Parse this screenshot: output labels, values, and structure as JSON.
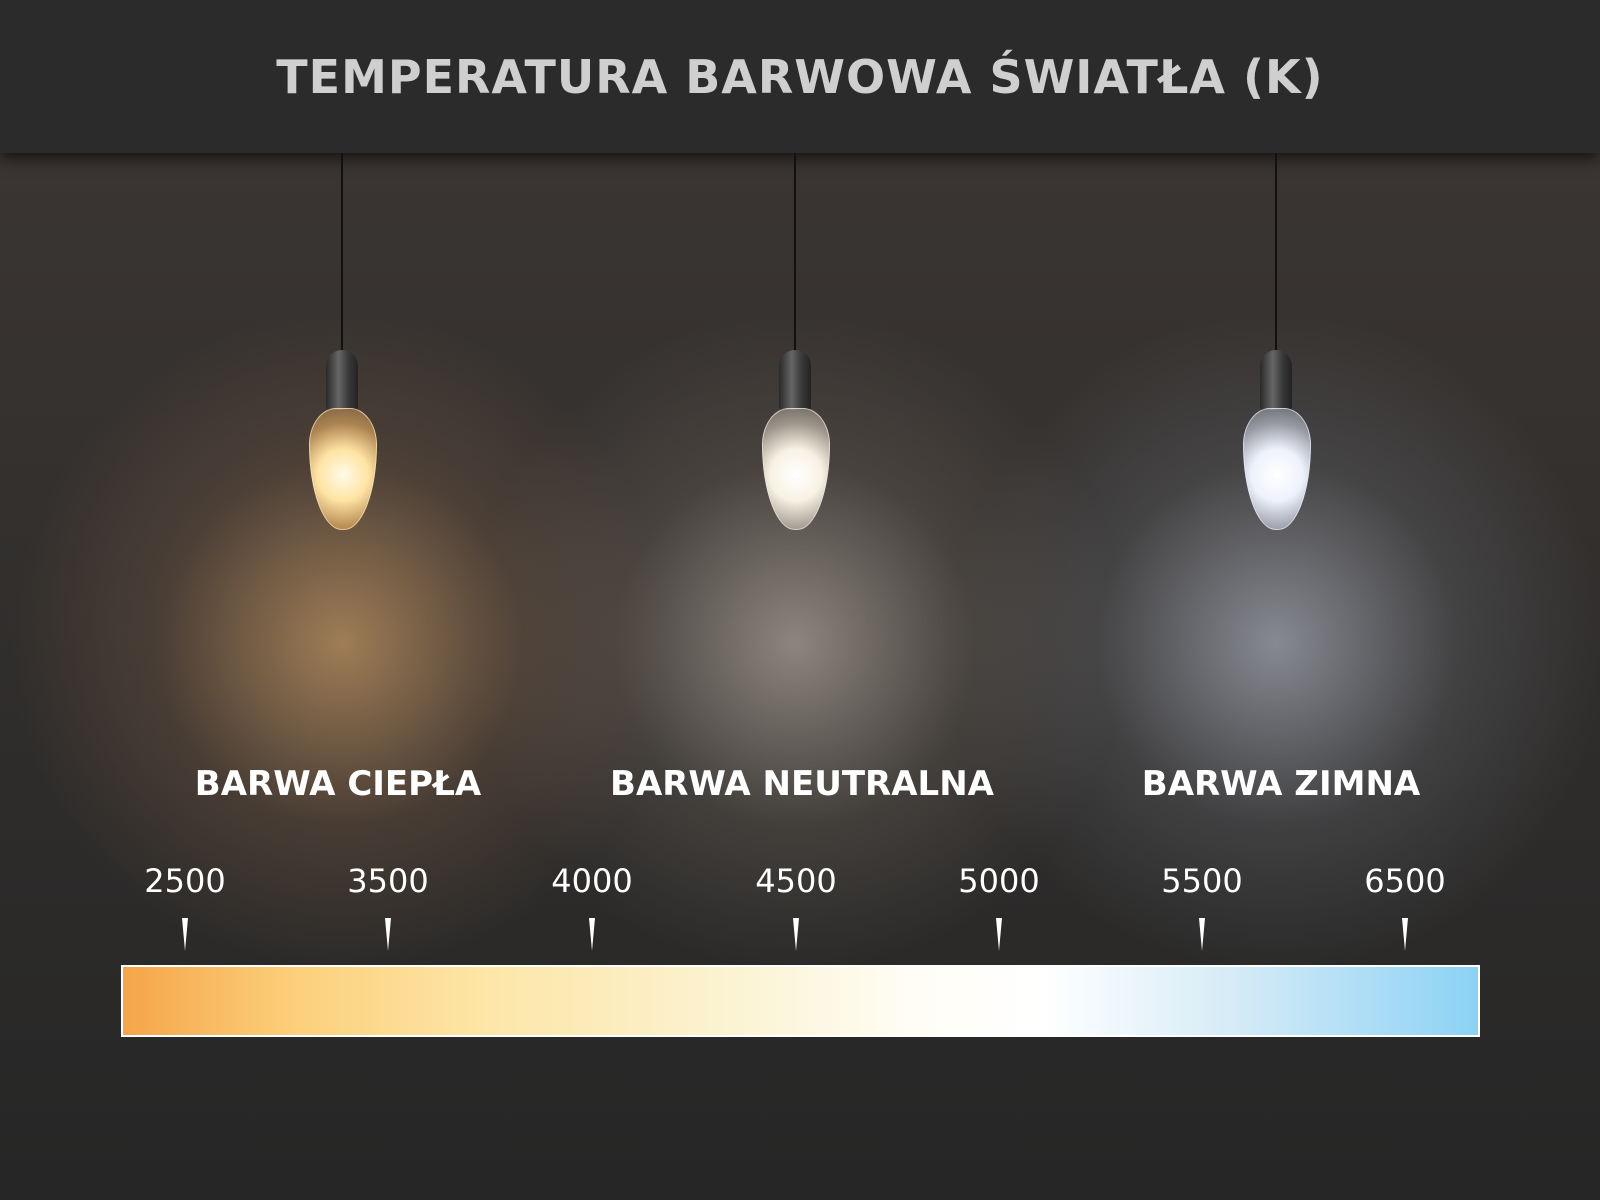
{
  "title": "TEMPERATURA BARWOWA ŚWIATŁA (K)",
  "categories": [
    {
      "label": "BARWA CIEPŁA",
      "light_color": "#fbc17a"
    },
    {
      "label": "BARWA NEUTRALNA",
      "light_color": "#f3eee2"
    },
    {
      "label": "BARWA ZIMNA",
      "light_color": "#e6edfb"
    }
  ],
  "scale": {
    "values": [
      "2500",
      "3500",
      "4000",
      "4500",
      "5000",
      "5500",
      "6500"
    ],
    "gradient_colors": [
      "#f5a54a",
      "#fcd07c",
      "#fde6a8",
      "#fbf3d2",
      "#ffffff",
      "#d5ebf6",
      "#8bd2f5"
    ]
  }
}
